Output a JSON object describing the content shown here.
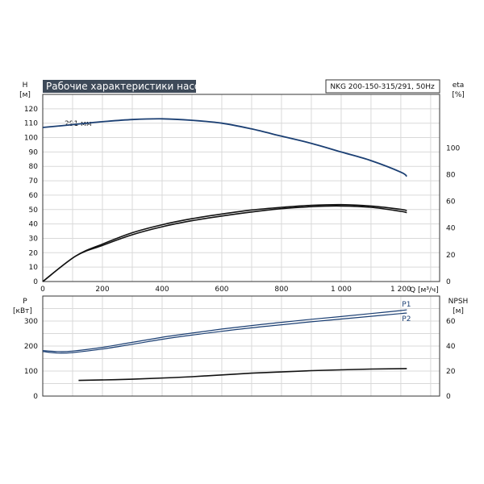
{
  "chart_data": [
    {
      "type": "line",
      "title": "Рабочие характеристики насоса",
      "model_label": "NKG 200-150-315/291, 50Hz",
      "left_axis_label": "H",
      "left_axis_unit": "[м]",
      "right_axis_label": "eta",
      "right_axis_unit": "[%]",
      "x_axis_label": "Q [м³/ч]",
      "x_ticks": [
        "0",
        "200",
        "400",
        "600",
        "800",
        "1 000",
        "1 200"
      ],
      "xlim": [
        0,
        1330
      ],
      "ylim": [
        0,
        130
      ],
      "y_ticks": [
        "0",
        "10",
        "20",
        "30",
        "40",
        "50",
        "60",
        "70",
        "80",
        "90",
        "100",
        "110",
        "120"
      ],
      "right_ylim": [
        0,
        140
      ],
      "right_ticks": [
        "0",
        "20",
        "40",
        "60",
        "80",
        "100"
      ],
      "annotation": "291 мм",
      "series": [
        {
          "axis": "left",
          "color": "#1b3f73",
          "x": [
            0,
            100,
            200,
            300,
            400,
            500,
            600,
            700,
            800,
            900,
            1000,
            1100,
            1200,
            1220
          ],
          "y": [
            107,
            109,
            111,
            112.5,
            113,
            112,
            110,
            106,
            101,
            96,
            90,
            84,
            76,
            73
          ]
        },
        {
          "axis": "right",
          "color": "#111111",
          "x": [
            0,
            110,
            200,
            300,
            400,
            500,
            600,
            700,
            800,
            900,
            1000,
            1100,
            1200,
            1220
          ],
          "y": [
            0,
            19,
            27,
            35,
            41,
            45.5,
            49,
            52,
            54.5,
            56,
            56.5,
            55.5,
            52.5,
            51.5
          ]
        },
        {
          "axis": "right",
          "color": "#111111",
          "x": [
            0,
            110,
            200,
            300,
            400,
            500,
            600,
            700,
            800,
            900,
            1000,
            1100,
            1200,
            1220
          ],
          "y": [
            0,
            19,
            28,
            36.5,
            42.5,
            47,
            50.5,
            53.5,
            55.5,
            57,
            57.5,
            56.5,
            54,
            53
          ]
        }
      ]
    },
    {
      "type": "line",
      "left_axis_label": "P",
      "left_axis_unit": "[кВт]",
      "right_axis_label": "NPSH",
      "right_axis_unit": "[м]",
      "xlim": [
        0,
        1330
      ],
      "ylim": [
        0,
        400
      ],
      "y_ticks": [
        "0",
        "100",
        "200",
        "300"
      ],
      "right_ylim": [
        0,
        80
      ],
      "right_ticks": [
        "0",
        "20",
        "40",
        "60"
      ],
      "series": [
        {
          "name": "P1",
          "axis": "left",
          "color": "#1b3f73",
          "x": [
            0,
            50,
            100,
            200,
            300,
            400,
            500,
            600,
            700,
            800,
            900,
            1000,
            1100,
            1200,
            1220
          ],
          "y": [
            182,
            178,
            180,
            195,
            215,
            235,
            252,
            268,
            282,
            295,
            307,
            318,
            330,
            342,
            345
          ]
        },
        {
          "name": "P2",
          "axis": "left",
          "color": "#1b3f73",
          "x": [
            0,
            50,
            100,
            200,
            300,
            400,
            500,
            600,
            700,
            800,
            900,
            1000,
            1100,
            1200,
            1220
          ],
          "y": [
            178,
            172,
            174,
            188,
            207,
            227,
            244,
            259,
            273,
            285,
            297,
            308,
            319,
            330,
            332
          ]
        },
        {
          "axis": "right",
          "color": "#111111",
          "x": [
            120,
            300,
            500,
            700,
            900,
            1100,
            1220
          ],
          "y": [
            12.5,
            13.5,
            15.5,
            18.3,
            20.3,
            21.6,
            22
          ]
        }
      ]
    }
  ]
}
